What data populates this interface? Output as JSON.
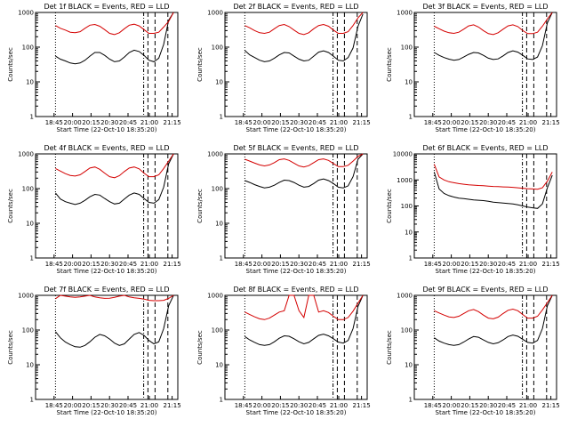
{
  "colors": {
    "events": "#000000",
    "lld": "#d40000",
    "axes": "#000000"
  },
  "shared": {
    "ylabel": "Counts/sec",
    "xlabel": "Start Time (22-Oct-10 18:35:20)",
    "xticks": [
      "18:45",
      "20:00",
      "20:15",
      "20:30",
      "20:45",
      "21:00",
      "21:15"
    ]
  },
  "chart_data": [
    {
      "type": "line",
      "title": "Det 1f BLACK = Events, RED = LLD",
      "yscale": "log",
      "ylim": [
        1,
        1000
      ],
      "ytick_labels": [
        "1",
        "10",
        "100",
        "1000"
      ],
      "series": [
        {
          "name": "Events",
          "values": [
            55,
            45,
            40,
            35,
            33,
            35,
            42,
            55,
            70,
            70,
            58,
            45,
            38,
            40,
            52,
            70,
            82,
            75,
            58,
            42,
            38,
            48,
            120,
            600,
            1000
          ]
        },
        {
          "name": "LLD",
          "values": [
            420,
            350,
            310,
            270,
            260,
            280,
            350,
            430,
            450,
            400,
            320,
            250,
            230,
            260,
            340,
            430,
            460,
            410,
            320,
            250,
            250,
            270,
            380,
            550,
            1000
          ]
        }
      ]
    },
    {
      "type": "line",
      "title": "Det 2f BLACK = Events, RED = LLD",
      "yscale": "log",
      "ylim": [
        1,
        1000
      ],
      "ytick_labels": [
        "1",
        "10",
        "100",
        "1000"
      ],
      "series": [
        {
          "name": "Events",
          "values": [
            80,
            60,
            50,
            42,
            38,
            40,
            48,
            60,
            70,
            68,
            55,
            45,
            40,
            42,
            55,
            72,
            78,
            70,
            55,
            42,
            40,
            50,
            95,
            400,
            900
          ]
        },
        {
          "name": "LLD",
          "values": [
            420,
            360,
            300,
            260,
            250,
            270,
            340,
            420,
            450,
            390,
            310,
            250,
            230,
            260,
            340,
            420,
            450,
            400,
            310,
            250,
            250,
            280,
            420,
            700,
            1000
          ]
        }
      ]
    },
    {
      "type": "line",
      "title": "Det 3f BLACK = Events, RED = LLD",
      "yscale": "log",
      "ylim": [
        1,
        1000
      ],
      "ytick_labels": [
        "1",
        "10",
        "100",
        "1000"
      ],
      "series": [
        {
          "name": "Events",
          "values": [
            70,
            58,
            50,
            45,
            42,
            44,
            52,
            62,
            70,
            68,
            58,
            48,
            44,
            46,
            56,
            70,
            78,
            72,
            58,
            46,
            44,
            52,
            110,
            500,
            1000
          ]
        },
        {
          "name": "LLD",
          "values": [
            400,
            340,
            290,
            260,
            250,
            270,
            330,
            410,
            440,
            380,
            300,
            245,
            230,
            260,
            330,
            410,
            440,
            390,
            300,
            245,
            245,
            270,
            400,
            650,
            1000
          ]
        }
      ]
    },
    {
      "type": "line",
      "title": "Det 4f BLACK = Events, RED = LLD",
      "yscale": "log",
      "ylim": [
        1,
        1000
      ],
      "ytick_labels": [
        "1",
        "10",
        "100",
        "1000"
      ],
      "series": [
        {
          "name": "Events",
          "values": [
            75,
            50,
            42,
            38,
            35,
            38,
            46,
            58,
            68,
            65,
            52,
            42,
            36,
            38,
            50,
            65,
            75,
            68,
            52,
            40,
            38,
            48,
            110,
            520,
            1000
          ]
        },
        {
          "name": "LLD",
          "values": [
            380,
            320,
            270,
            240,
            230,
            250,
            310,
            390,
            420,
            360,
            280,
            220,
            205,
            235,
            310,
            390,
            420,
            370,
            280,
            220,
            220,
            250,
            380,
            620,
            1000
          ]
        }
      ]
    },
    {
      "type": "line",
      "title": "Det 5f BLACK = Events, RED = LLD",
      "yscale": "log",
      "ylim": [
        1,
        1000
      ],
      "ytick_labels": [
        "1",
        "10",
        "100",
        "1000"
      ],
      "series": [
        {
          "name": "Events",
          "values": [
            170,
            150,
            130,
            115,
            105,
            110,
            125,
            150,
            175,
            170,
            150,
            125,
            110,
            115,
            140,
            175,
            190,
            170,
            140,
            110,
            105,
            120,
            220,
            700,
            1000
          ]
        },
        {
          "name": "LLD",
          "values": [
            700,
            620,
            540,
            480,
            450,
            480,
            560,
            680,
            720,
            650,
            540,
            450,
            420,
            460,
            560,
            680,
            720,
            650,
            530,
            430,
            430,
            470,
            620,
            850,
            1000
          ]
        }
      ]
    },
    {
      "type": "line",
      "title": "Det 6f BLACK = Events, RED = LLD",
      "yscale": "log",
      "ylim": [
        1,
        10000
      ],
      "ytick_labels": [
        "1",
        "10",
        "100",
        "1000",
        "10000"
      ],
      "series": [
        {
          "name": "Events",
          "values": [
            2000,
            450,
            300,
            250,
            220,
            200,
            190,
            180,
            170,
            165,
            160,
            150,
            140,
            135,
            130,
            125,
            120,
            110,
            100,
            90,
            85,
            80,
            120,
            500,
            1500
          ]
        },
        {
          "name": "LLD",
          "values": [
            4000,
            1300,
            1000,
            850,
            780,
            720,
            680,
            650,
            630,
            610,
            600,
            580,
            560,
            550,
            540,
            530,
            520,
            500,
            480,
            460,
            450,
            440,
            500,
            900,
            2000
          ]
        }
      ]
    },
    {
      "type": "line",
      "title": "Det 7f BLACK = Events, RED = LLD",
      "yscale": "log",
      "ylim": [
        1,
        1000
      ],
      "ytick_labels": [
        "1",
        "10",
        "100",
        "1000"
      ],
      "series": [
        {
          "name": "Events",
          "values": [
            90,
            60,
            45,
            38,
            33,
            32,
            36,
            46,
            62,
            75,
            68,
            55,
            42,
            36,
            40,
            55,
            75,
            85,
            70,
            50,
            40,
            46,
            110,
            500,
            1000
          ]
        },
        {
          "name": "LLD",
          "values": [
            800,
            1000,
            950,
            900,
            880,
            900,
            950,
            1000,
            900,
            850,
            820,
            830,
            880,
            950,
            1000,
            900,
            850,
            820,
            780,
            720,
            700,
            700,
            720,
            820,
            1000
          ]
        }
      ]
    },
    {
      "type": "line",
      "title": "Det 8f BLACK = Events, RED = LLD",
      "yscale": "log",
      "ylim": [
        1,
        1000
      ],
      "ytick_labels": [
        "1",
        "10",
        "100",
        "1000"
      ],
      "series": [
        {
          "name": "Events",
          "values": [
            65,
            52,
            44,
            38,
            36,
            38,
            46,
            58,
            68,
            66,
            56,
            46,
            40,
            44,
            56,
            70,
            76,
            68,
            56,
            45,
            42,
            50,
            110,
            480,
            1000
          ]
        },
        {
          "name": "LLD",
          "values": [
            330,
            280,
            240,
            210,
            200,
            220,
            270,
            330,
            360,
            1000,
            1000,
            360,
            230,
            1000,
            1000,
            330,
            360,
            320,
            250,
            200,
            200,
            230,
            350,
            600,
            1000
          ]
        }
      ]
    },
    {
      "type": "line",
      "title": "Det 9f BLACK = Events, RED = LLD",
      "yscale": "log",
      "ylim": [
        1,
        1000
      ],
      "ytick_labels": [
        "1",
        "10",
        "100",
        "1000"
      ],
      "series": [
        {
          "name": "Events",
          "values": [
            60,
            48,
            42,
            38,
            36,
            38,
            45,
            55,
            65,
            62,
            52,
            44,
            40,
            43,
            52,
            65,
            72,
            66,
            54,
            44,
            42,
            50,
            110,
            500,
            1000
          ]
        },
        {
          "name": "LLD",
          "values": [
            360,
            310,
            270,
            240,
            230,
            250,
            300,
            360,
            390,
            340,
            270,
            220,
            210,
            235,
            300,
            370,
            400,
            360,
            280,
            220,
            220,
            250,
            380,
            620,
            1000
          ]
        }
      ]
    }
  ]
}
